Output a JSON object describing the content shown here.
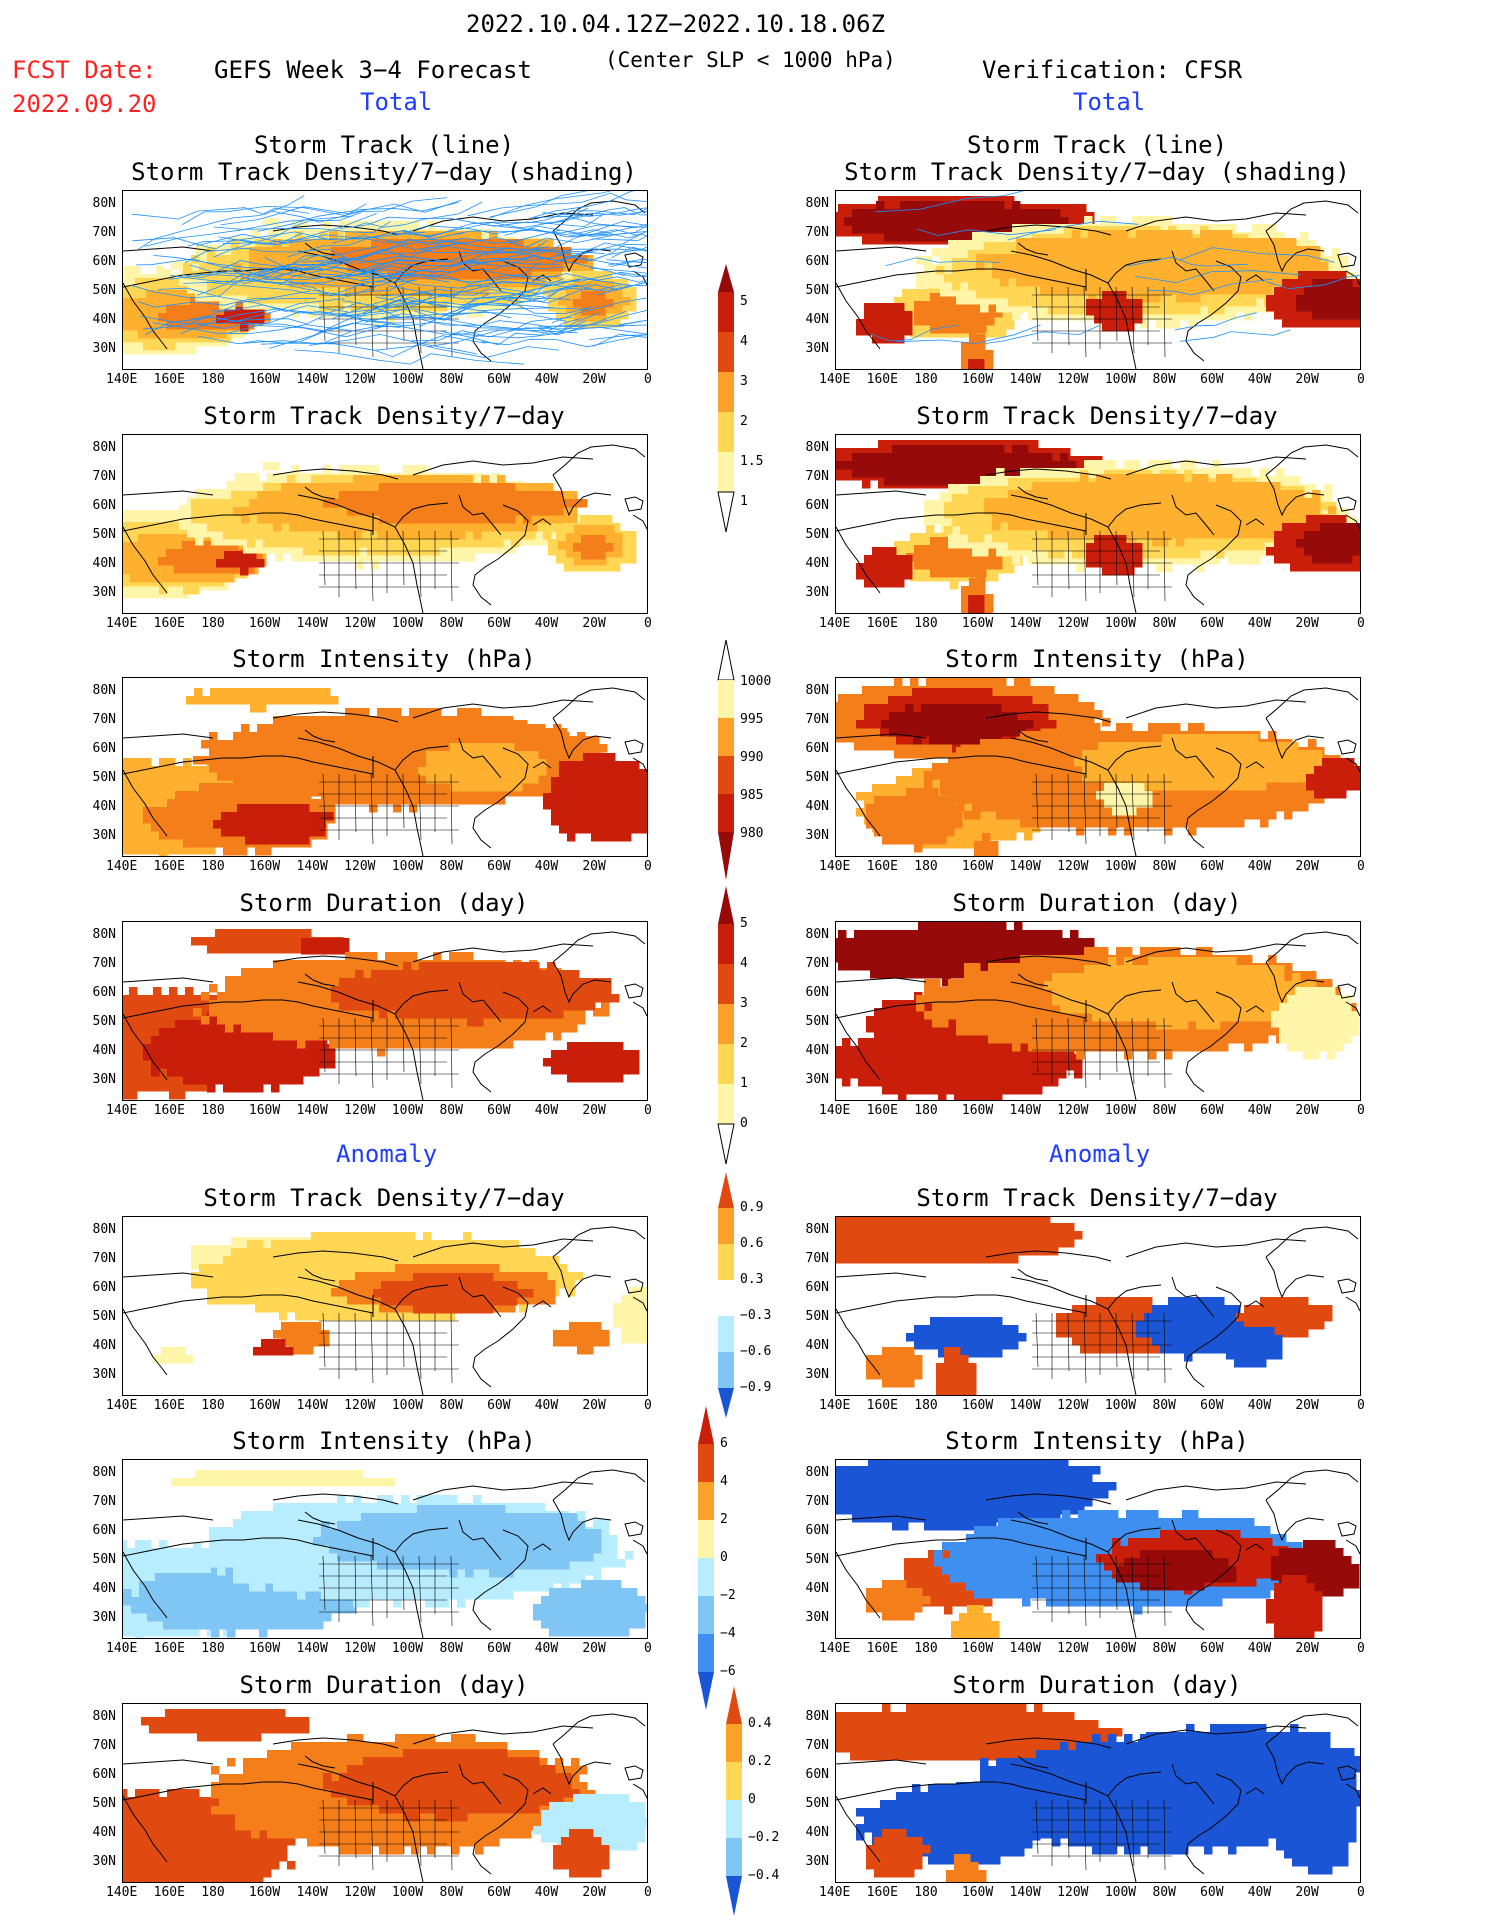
{
  "header": {
    "date_range": "2022.10.04.12Z−2022.10.18.06Z",
    "fcst_label": "FCST Date:",
    "fcst_date": "2022.09.20",
    "forecast_title": "GEFS Week 3−4 Forecast",
    "center_slp": "(Center SLP < 1000 hPa)",
    "verification": "Verification: CFSR",
    "total_left": "Total",
    "total_right": "Total",
    "anomaly_left": "Anomaly",
    "anomaly_right": "Anomaly"
  },
  "panel_titles": {
    "track_line": "Storm Track (line)",
    "track_shading": "Storm Track Density/7−day (shading)",
    "density": "Storm Track Density/7−day",
    "intensity": "Storm Intensity (hPa)",
    "duration": "Storm Duration (day)"
  },
  "axes": {
    "lat_labels": [
      "80N",
      "70N",
      "60N",
      "50N",
      "40N",
      "30N"
    ],
    "lon_labels": [
      "140E",
      "160E",
      "180",
      "160W",
      "140W",
      "120W",
      "100W",
      "80W",
      "60W",
      "40W",
      "20W",
      "0"
    ]
  },
  "colorbars": {
    "density": [
      "5",
      "4",
      "3",
      "2",
      "1.5",
      "1"
    ],
    "intensity": [
      "1000",
      "995",
      "990",
      "985",
      "980"
    ],
    "duration": [
      "5",
      "4",
      "3",
      "2",
      "1",
      "0"
    ],
    "density_anom": [
      "0.9",
      "0.6",
      "0.3",
      "−0.3",
      "−0.6",
      "−0.9"
    ],
    "intensity_anom": [
      "6",
      "4",
      "2",
      "0",
      "−2",
      "−4",
      "−6"
    ],
    "duration_anom": [
      "0.4",
      "0.2",
      "0",
      "−0.2",
      "−0.4"
    ]
  },
  "colors": {
    "pale_yellow": "#fff5a8",
    "yellow": "#ffd754",
    "light_orange": "#ffb02e",
    "orange": "#f47e1a",
    "red_orange": "#e04a10",
    "red": "#c81e0a",
    "dark_red": "#960a0a",
    "light_blue": "#b8ecff",
    "sky_blue": "#7fc6f5",
    "blue": "#3f8ff0",
    "dark_blue": "#1a55d6",
    "track_blue": "#1e90ff"
  }
}
